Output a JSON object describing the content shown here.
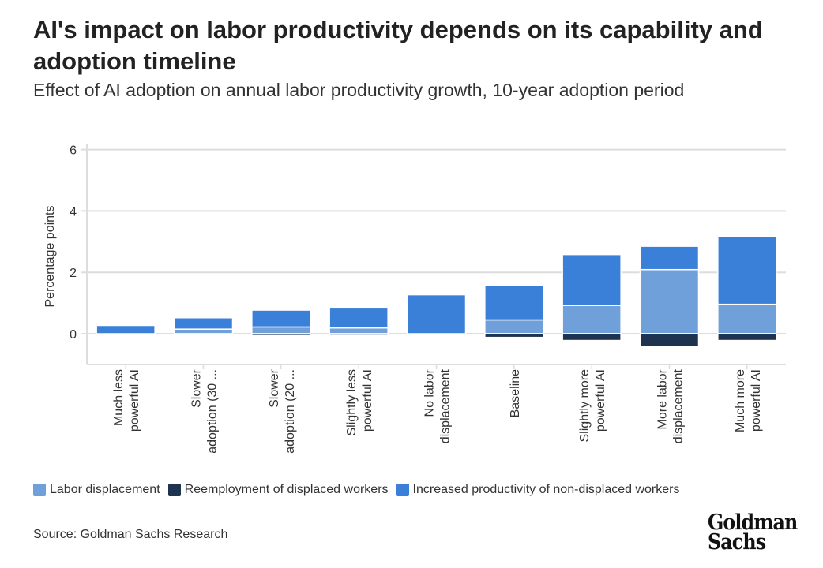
{
  "title": "AI's impact on labor productivity depends on its capability and adoption timeline",
  "subtitle": "Effect of AI adoption on annual labor productivity growth, 10-year adoption period",
  "source": "Source: Goldman Sachs Research",
  "logo": "Goldman Sachs",
  "chart_data": {
    "type": "bar",
    "stacked": true,
    "ylabel": "Percentage points",
    "ylim": [
      -1,
      6
    ],
    "yticks": [
      0,
      2,
      4,
      6
    ],
    "grid": true,
    "legend_position": "bottom",
    "categories": [
      [
        "Much less",
        "powerful AI"
      ],
      [
        "Slower",
        "adoption (30 ..."
      ],
      [
        "Slower",
        "adoption (20 ..."
      ],
      [
        "Slightly less",
        "powerful AI"
      ],
      [
        "No labor",
        "displacement"
      ],
      [
        "Baseline"
      ],
      [
        "Slightly more",
        "powerful AI"
      ],
      [
        "More labor",
        "displacement"
      ],
      [
        "Much more",
        "powerful AI"
      ]
    ],
    "series": [
      {
        "name": "Labor displacement",
        "color": "#6fa0da",
        "values": [
          0,
          0.15,
          0.22,
          0.19,
          0,
          0.45,
          0.92,
          2.09,
          0.96
        ]
      },
      {
        "name": "Reemployment of displaced workers",
        "color": "#1e3350",
        "values": [
          0,
          -0.04,
          -0.06,
          -0.05,
          0,
          -0.12,
          -0.22,
          -0.43,
          -0.22
        ]
      },
      {
        "name": "Increased productivity of non-displaced workers",
        "color": "#3a7fd8",
        "values": [
          0.27,
          0.37,
          0.55,
          0.65,
          1.27,
          1.12,
          1.66,
          0.76,
          2.21
        ]
      }
    ]
  }
}
